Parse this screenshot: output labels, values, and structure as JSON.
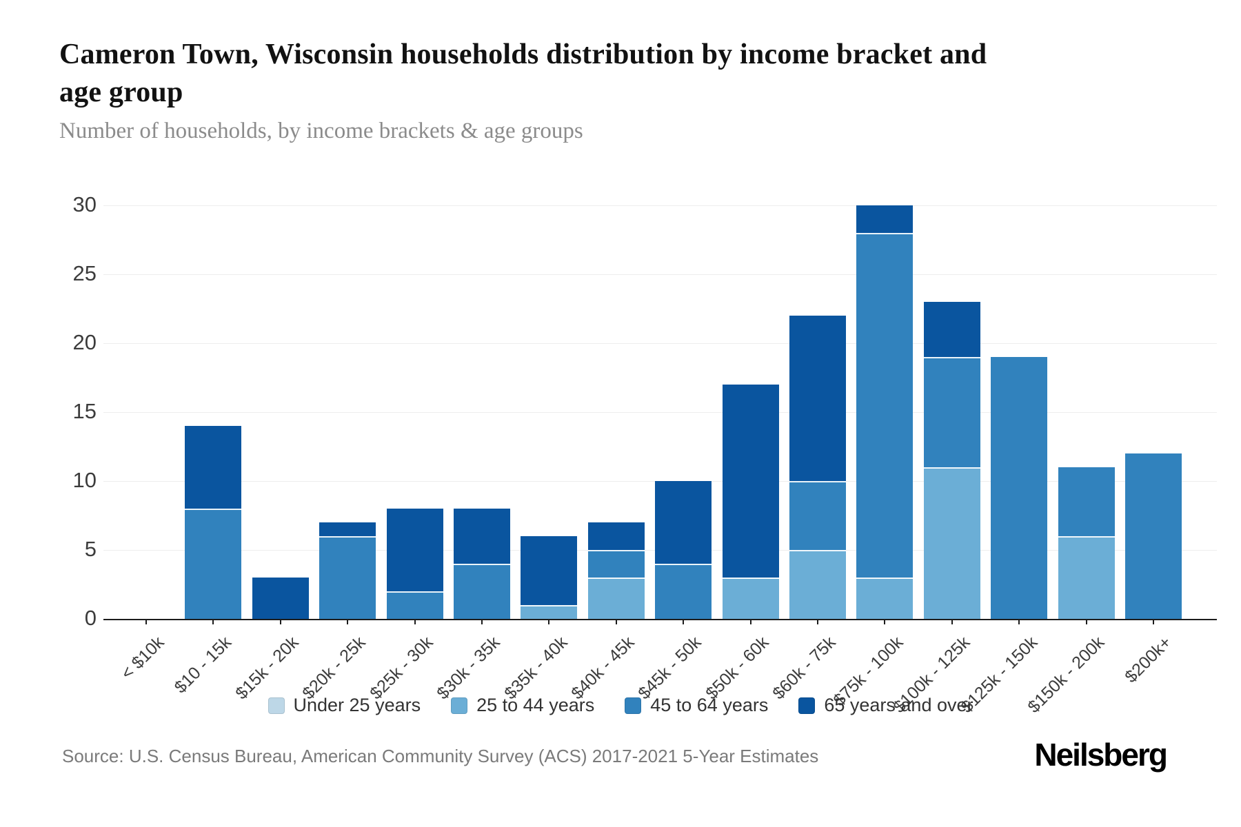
{
  "header": {
    "title": "Cameron Town, Wisconsin households distribution by income bracket and age group",
    "subtitle": "Number of households, by income brackets & age groups"
  },
  "chart_data": {
    "type": "bar",
    "stacked": true,
    "title": "Cameron Town, Wisconsin households distribution by income bracket and age group",
    "subtitle": "Number of households, by income brackets & age groups",
    "xlabel": "",
    "ylabel": "Number of households",
    "ylim": [
      0,
      30
    ],
    "yticks": [
      0,
      5,
      10,
      15,
      20,
      25,
      30
    ],
    "grid": true,
    "legend_position": "bottom",
    "categories": [
      "< $10k",
      "$10 - 15k",
      "$15k - 20k",
      "$20k - 25k",
      "$25k - 30k",
      "$30k - 35k",
      "$35k - 40k",
      "$40k - 45k",
      "$45k - 50k",
      "$50k - 60k",
      "$60k - 75k",
      "$75k - 100k",
      "$100k - 125k",
      "$125k - 150k",
      "$150k - 200k",
      "$200k+"
    ],
    "series": [
      {
        "name": "Under 25 years",
        "color": "#bdd7e7",
        "values": [
          0,
          0,
          0,
          0,
          0,
          0,
          0,
          0,
          0,
          0,
          0,
          0,
          0,
          0,
          0,
          0
        ]
      },
      {
        "name": "25 to 44 years",
        "color": "#6baed6",
        "values": [
          0,
          0,
          0,
          0,
          0,
          0,
          1,
          3,
          0,
          3,
          5,
          3,
          11,
          0,
          6,
          0
        ]
      },
      {
        "name": "45 to 64 years",
        "color": "#3182bd",
        "values": [
          0,
          8,
          0,
          6,
          2,
          4,
          0,
          2,
          4,
          0,
          5,
          25,
          8,
          19,
          5,
          12
        ]
      },
      {
        "name": "65 years and over",
        "color": "#0a559f",
        "values": [
          0,
          6,
          3,
          1,
          6,
          4,
          5,
          2,
          6,
          14,
          12,
          2,
          4,
          0,
          0,
          0
        ]
      }
    ],
    "totals": [
      0,
      14,
      3,
      7,
      8,
      8,
      6,
      7,
      10,
      17,
      22,
      30,
      23,
      19,
      11,
      12
    ]
  },
  "footer": {
    "source": "Source: U.S. Census Bureau, American Community Survey (ACS) 2017-2021 5-Year Estimates",
    "brand": "Neilsberg"
  }
}
